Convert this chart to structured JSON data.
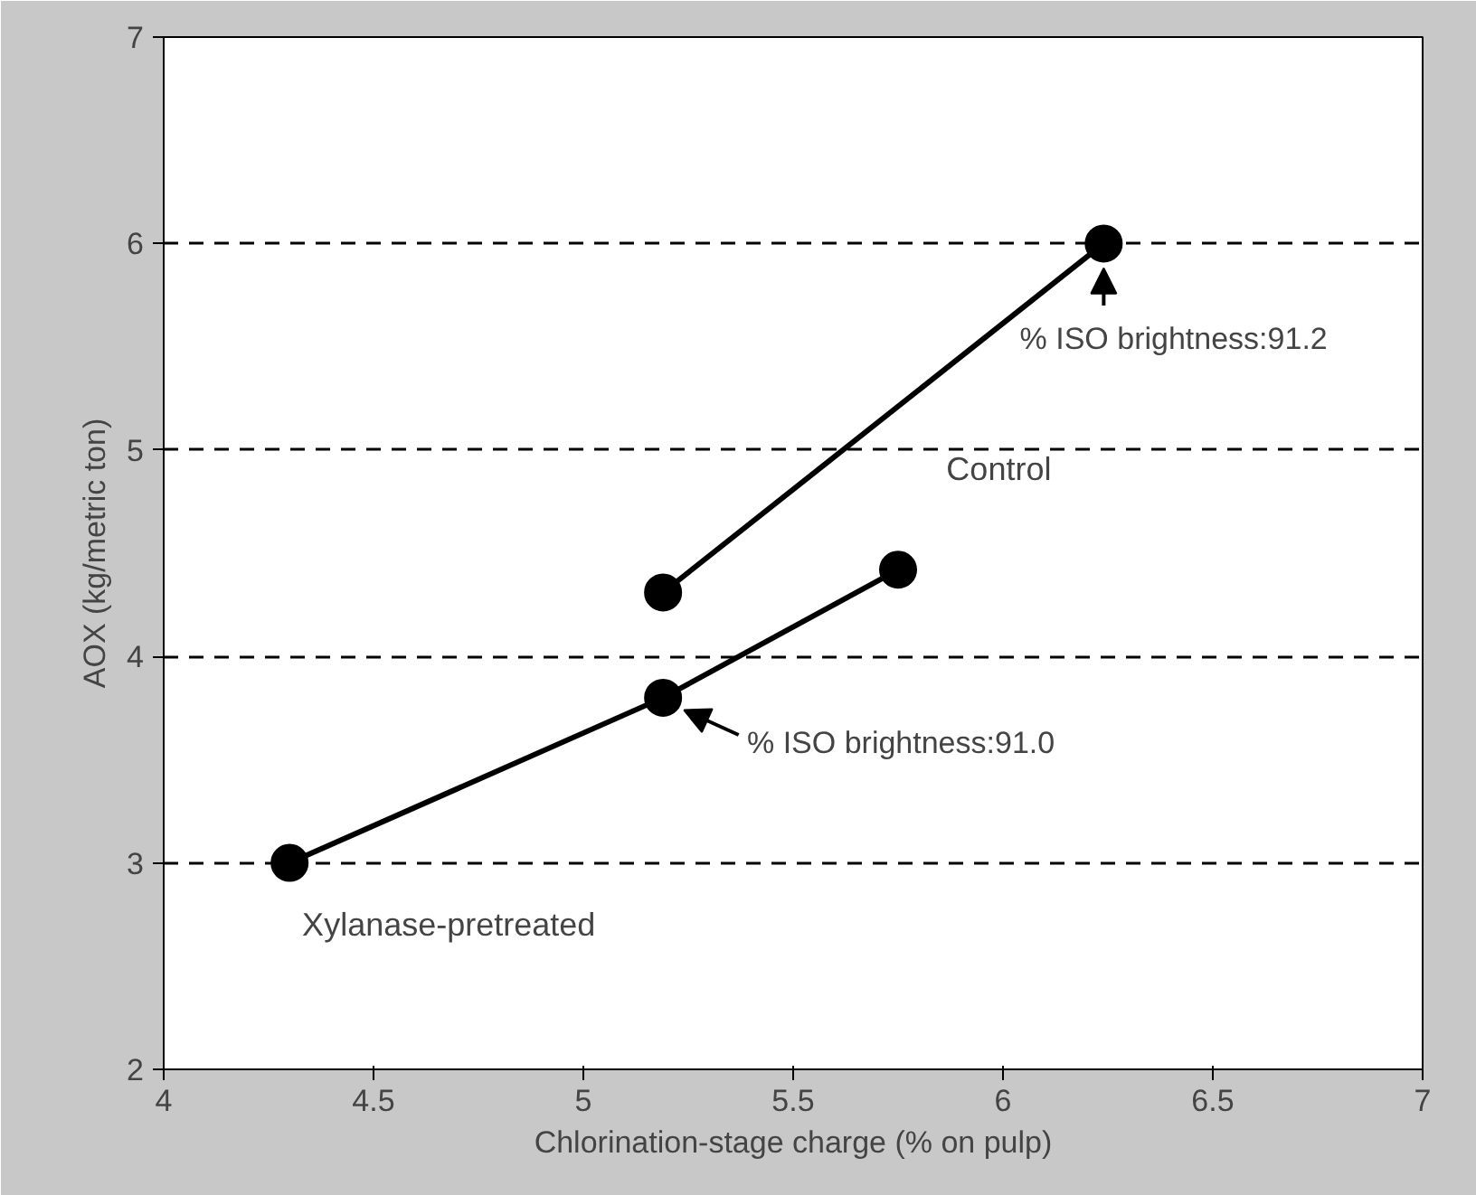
{
  "chart_data": {
    "type": "line",
    "xlabel": "Chlorination-stage charge (% on pulp)",
    "ylabel": "AOX (kg/metric ton)",
    "xlim": [
      4,
      7
    ],
    "ylim": [
      2,
      7
    ],
    "xticks": [
      4,
      4.5,
      5,
      5.5,
      6,
      6.5,
      7
    ],
    "yticks": [
      2,
      3,
      4,
      5,
      6,
      7
    ],
    "grid": "y",
    "marker": "circle",
    "series": [
      {
        "name": "Control",
        "color": "#000000",
        "x": [
          5.19,
          6.24
        ],
        "values": [
          4.31,
          6.0
        ]
      },
      {
        "name": "Xylanase-pretreated",
        "color": "#000000",
        "x": [
          4.3,
          5.19,
          5.75
        ],
        "values": [
          3.0,
          3.8,
          4.42
        ]
      }
    ],
    "annotations": [
      {
        "text": "% ISO brightness:91.2",
        "x": 6.24,
        "y": 6.0
      },
      {
        "text": "% ISO brightness:91.0",
        "x": 5.19,
        "y": 3.8
      }
    ]
  }
}
